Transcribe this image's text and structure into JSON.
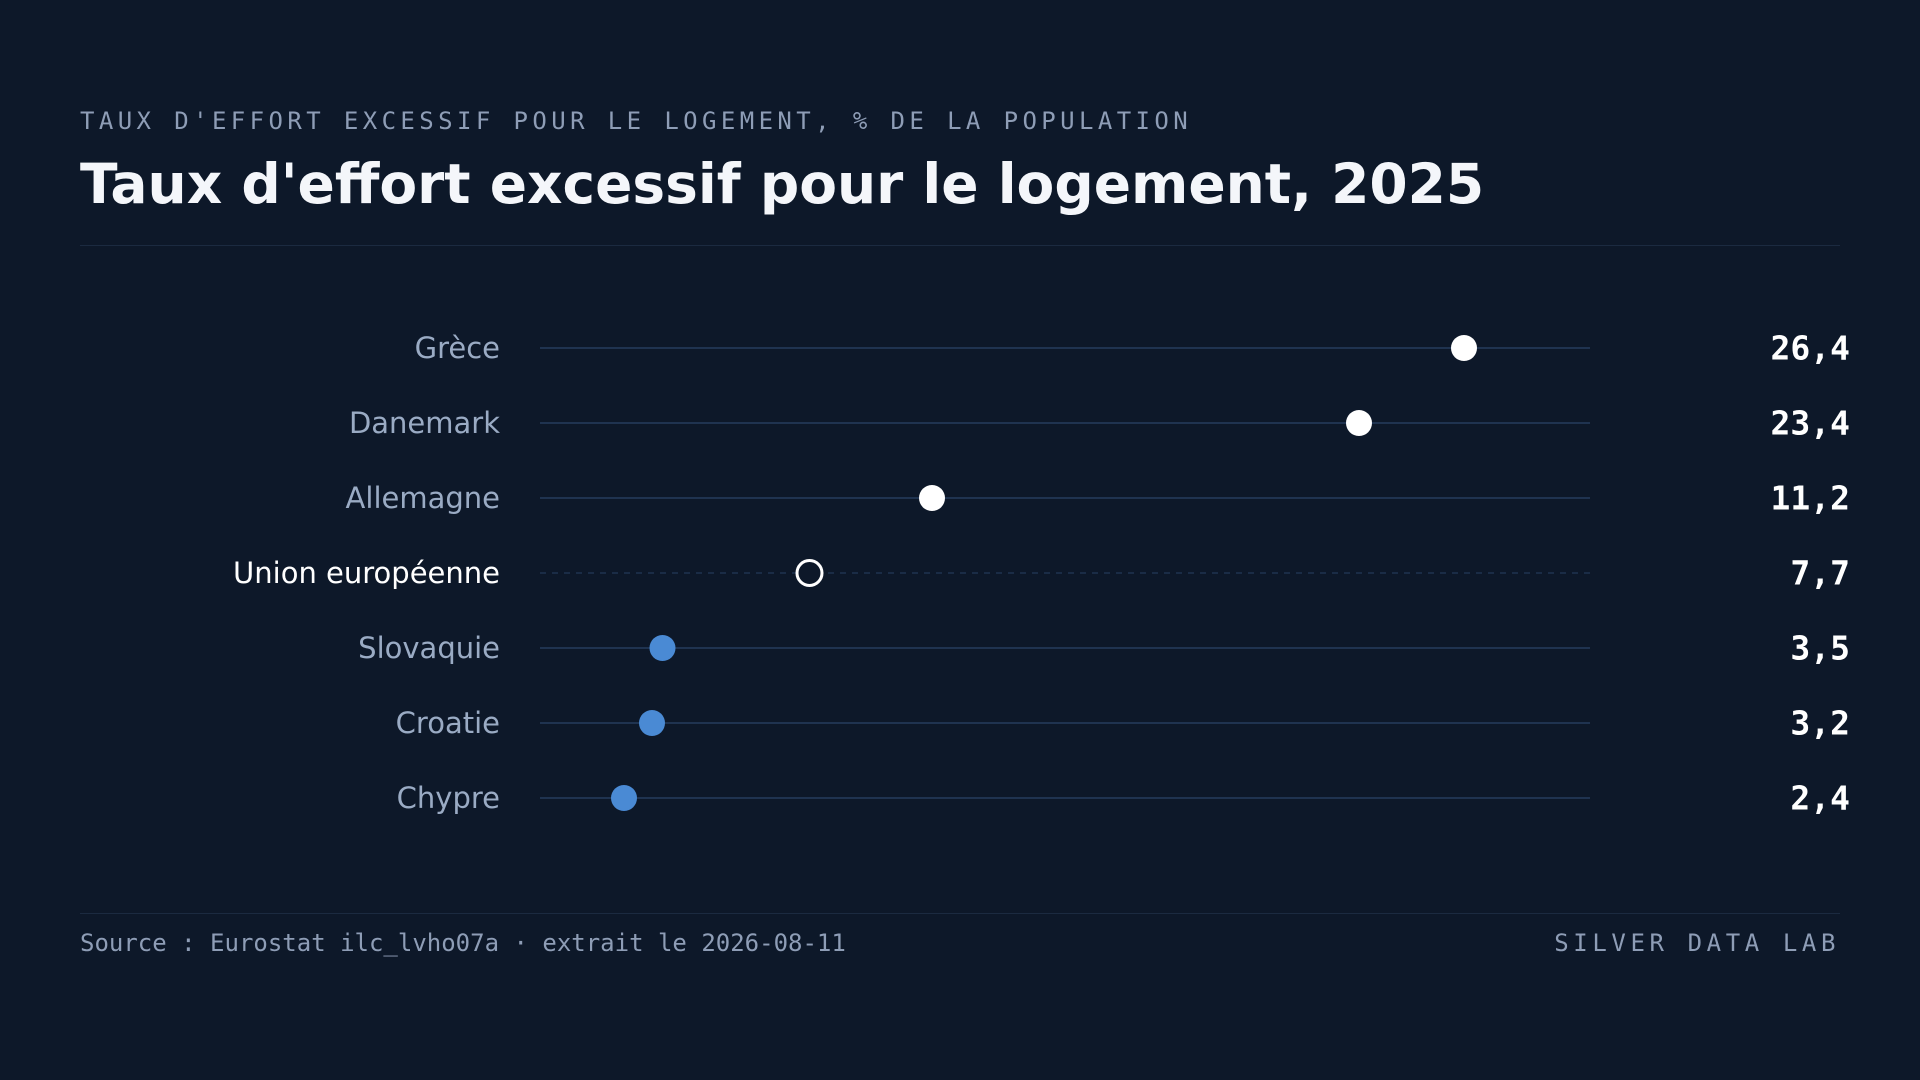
{
  "header": {
    "subtitle": "TAUX D'EFFORT EXCESSIF POUR LE LOGEMENT, % DE LA POPULATION",
    "title": "Taux d'effort excessif pour le logement, 2025"
  },
  "footer": {
    "source": "Source : Eurostat ilc_lvho07a · extrait le 2026-08-11",
    "brand": "SILVER DATA LAB"
  },
  "colors": {
    "background": "#0d1829",
    "track": "#1f3350",
    "dot_high": "#ffffff",
    "dot_low": "#4a8ad4",
    "label": "#9aabc4",
    "label_highlight": "#ffffff",
    "value": "#ffffff"
  },
  "chart_data": {
    "type": "dot",
    "title": "Taux d'effort excessif pour le logement, 2025",
    "subtitle": "TAUX D'EFFORT EXCESSIF POUR LE LOGEMENT, % DE LA POPULATION",
    "xlim": [
      0,
      30
    ],
    "grid": false,
    "categories": [
      "Grèce",
      "Danemark",
      "Allemagne",
      "Union européenne",
      "Slovaquie",
      "Croatie",
      "Chypre"
    ],
    "values": [
      26.4,
      23.4,
      11.2,
      7.7,
      3.5,
      3.2,
      2.4
    ],
    "value_labels": [
      "26,4",
      "23,4",
      "11,2",
      "7,7",
      "3,5",
      "3,2",
      "2,4"
    ],
    "groups": [
      "high",
      "high",
      "high",
      "reference",
      "low",
      "low",
      "low"
    ]
  }
}
